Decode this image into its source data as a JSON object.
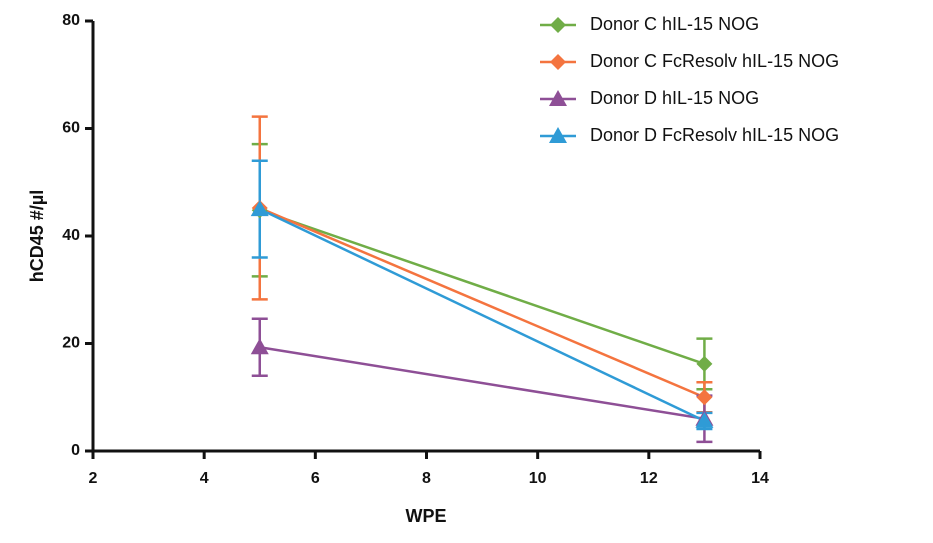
{
  "chart_data": {
    "type": "line",
    "x_label": "WPE",
    "y_label": "hCD45 #/µl",
    "xlim": [
      2,
      14
    ],
    "xticks": [
      2,
      4,
      6,
      8,
      10,
      12,
      14
    ],
    "ylim": [
      0,
      80
    ],
    "yticks": [
      0,
      20,
      40,
      60,
      80
    ],
    "x": [
      5,
      13
    ],
    "series": [
      {
        "name": "Donor C hIL-15 NOG",
        "color": "#70ad47",
        "marker": "diamond",
        "values": [
          44.8,
          16.2
        ],
        "errors": [
          12.3,
          4.7
        ]
      },
      {
        "name": "Donor C FcResolv hIL-15 NOG",
        "color": "#f4743f",
        "marker": "diamond",
        "values": [
          45.2,
          10
        ],
        "errors": [
          17,
          2.8
        ]
      },
      {
        "name": "Donor D hIL-15 NOG",
        "color": "#8e4f96",
        "marker": "triangle",
        "values": [
          19.3,
          6
        ],
        "errors": [
          5.3,
          4.3
        ]
      },
      {
        "name": "Donor D FcResolv hIL-15 NOG",
        "color": "#2f9bd6",
        "marker": "triangle",
        "values": [
          45,
          5.6
        ],
        "errors": [
          9,
          1.5
        ]
      }
    ]
  }
}
